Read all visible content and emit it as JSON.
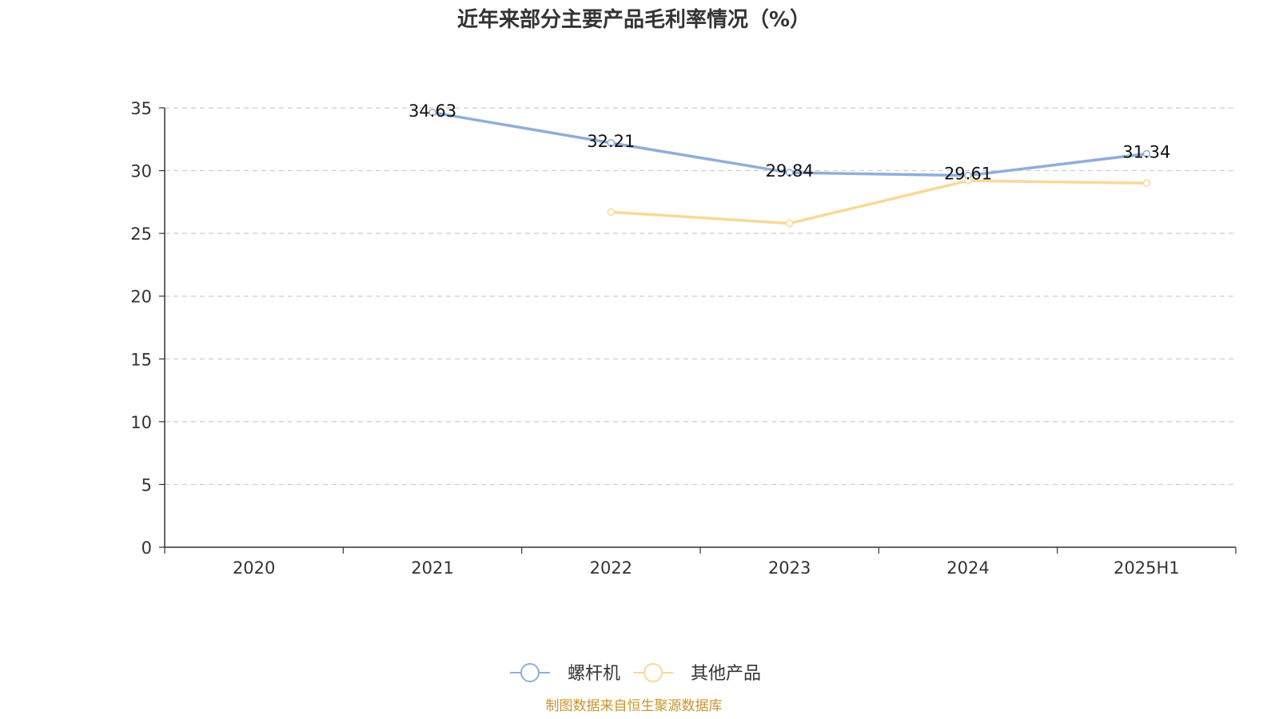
{
  "chart_data": {
    "type": "line",
    "title": "近年来部分主要产品毛利率情况（%）",
    "categories": [
      "2020",
      "2021",
      "2022",
      "2023",
      "2024",
      "2025H1"
    ],
    "ylim": [
      0,
      35
    ],
    "yticks": [
      0,
      5,
      10,
      15,
      20,
      25,
      30,
      35
    ],
    "grid": true,
    "legend_position": "bottom-center",
    "series": [
      {
        "name": "螺杆机",
        "color": "#8eaedc",
        "values": [
          null,
          34.63,
          32.21,
          29.84,
          29.61,
          31.34
        ],
        "labels": [
          null,
          "34.63",
          "32.21",
          "29.84",
          "29.61",
          "31.34"
        ]
      },
      {
        "name": "其他产品",
        "color": "#f9d898",
        "values": [
          null,
          null,
          26.7,
          25.8,
          29.2,
          29.0
        ],
        "labels": [
          null,
          null,
          null,
          null,
          null,
          null
        ]
      }
    ]
  },
  "source_note": "制图数据来自恒生聚源数据库",
  "source_color": "#c8962e"
}
